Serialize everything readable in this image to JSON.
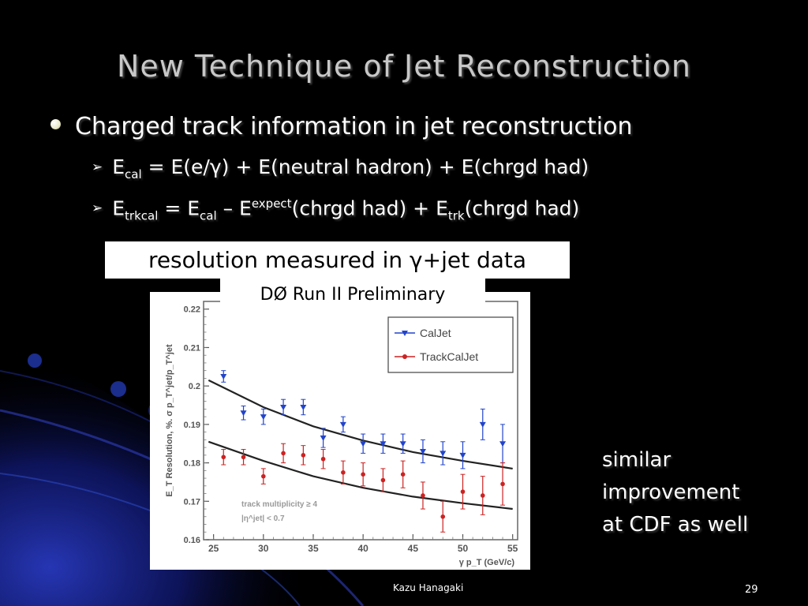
{
  "slide": {
    "title": "New Technique of Jet Reconstruction",
    "bullet": "Charged track information in jet reconstruction",
    "sub1": {
      "e": "E",
      "cal_sub": "cal",
      "rest": " = E(e/γ) + E(neutral hadron) + E(chrgd had)"
    },
    "sub2": {
      "e1": "E",
      "trkcal_sub": "trkcal",
      "eq": " = E",
      "cal_sub": "cal",
      "minus": " – E",
      "expect_sup": "expect",
      "mid": "(chrgd had) + E",
      "trk_sub": "trk",
      "end": "(chrgd had)"
    },
    "resolution_box": "resolution measured in γ+jet data",
    "dzero_label": "DØ Run II Preliminary",
    "side_note": [
      "similar",
      "improvement",
      "at CDF as well"
    ],
    "footer_name": "Kazu Hanagaki",
    "slide_number": "29"
  },
  "chart_data": {
    "type": "scatter",
    "title": "",
    "xlabel": "γ p_T (GeV/c)",
    "ylabel": "E_T Resolution, %. σ p_T^jet/p_T^jet",
    "xlim": [
      24,
      55.5
    ],
    "ylim": [
      0.16,
      0.222
    ],
    "xticks": [
      25,
      30,
      35,
      40,
      45,
      50,
      55
    ],
    "yticks": [
      0.16,
      0.17,
      0.18,
      0.19,
      0.2,
      0.21,
      0.22
    ],
    "ytick_labels": [
      "0.16",
      "0.17",
      "0.18",
      "0.19",
      "0.2",
      "0.21",
      "0.22"
    ],
    "legend_position": "top-right",
    "annotations": [
      "track multiplicity ≥ 4",
      "|η^jet| < 0.7"
    ],
    "series": [
      {
        "name": "CalJet",
        "color": "#2244cc",
        "marker": "triangle-down",
        "x": [
          26,
          28,
          30,
          32,
          34,
          36,
          38,
          40,
          42,
          44,
          46,
          48,
          50,
          52,
          54
        ],
        "y": [
          0.2025,
          0.193,
          0.192,
          0.1945,
          0.1945,
          0.1865,
          0.19,
          0.185,
          0.185,
          0.185,
          0.183,
          0.1825,
          0.182,
          0.19,
          0.185
        ],
        "err": [
          0.0015,
          0.0018,
          0.002,
          0.002,
          0.002,
          0.0025,
          0.002,
          0.0025,
          0.0025,
          0.0025,
          0.003,
          0.003,
          0.0035,
          0.004,
          0.005
        ]
      },
      {
        "name": "TrackCalJet",
        "color": "#cc2222",
        "marker": "circle",
        "x": [
          26,
          28,
          30,
          32,
          34,
          36,
          38,
          40,
          42,
          44,
          46,
          48,
          50,
          52,
          54
        ],
        "y": [
          0.1815,
          0.1815,
          0.1765,
          0.1825,
          0.182,
          0.181,
          0.1775,
          0.177,
          0.1755,
          0.177,
          0.1715,
          0.166,
          0.1725,
          0.1715,
          0.1745
        ],
        "err": [
          0.002,
          0.002,
          0.002,
          0.0025,
          0.0025,
          0.0025,
          0.003,
          0.003,
          0.003,
          0.0035,
          0.0035,
          0.004,
          0.0045,
          0.005,
          0.0055
        ]
      }
    ],
    "fits": [
      {
        "series": "CalJet",
        "x": [
          24.5,
          30,
          35,
          40,
          45,
          50,
          55
        ],
        "y": [
          0.2015,
          0.1945,
          0.1895,
          0.1858,
          0.1828,
          0.1805,
          0.1785
        ]
      },
      {
        "series": "TrackCalJet",
        "x": [
          24.5,
          30,
          35,
          40,
          45,
          50,
          55
        ],
        "y": [
          0.1855,
          0.1805,
          0.1765,
          0.1735,
          0.1712,
          0.1695,
          0.168
        ]
      }
    ]
  },
  "colors": {
    "background": "#000000",
    "title": "#c8c8c8",
    "swoosh_dark": "#0a0a5a",
    "swoosh_light": "#2a3cc8"
  }
}
